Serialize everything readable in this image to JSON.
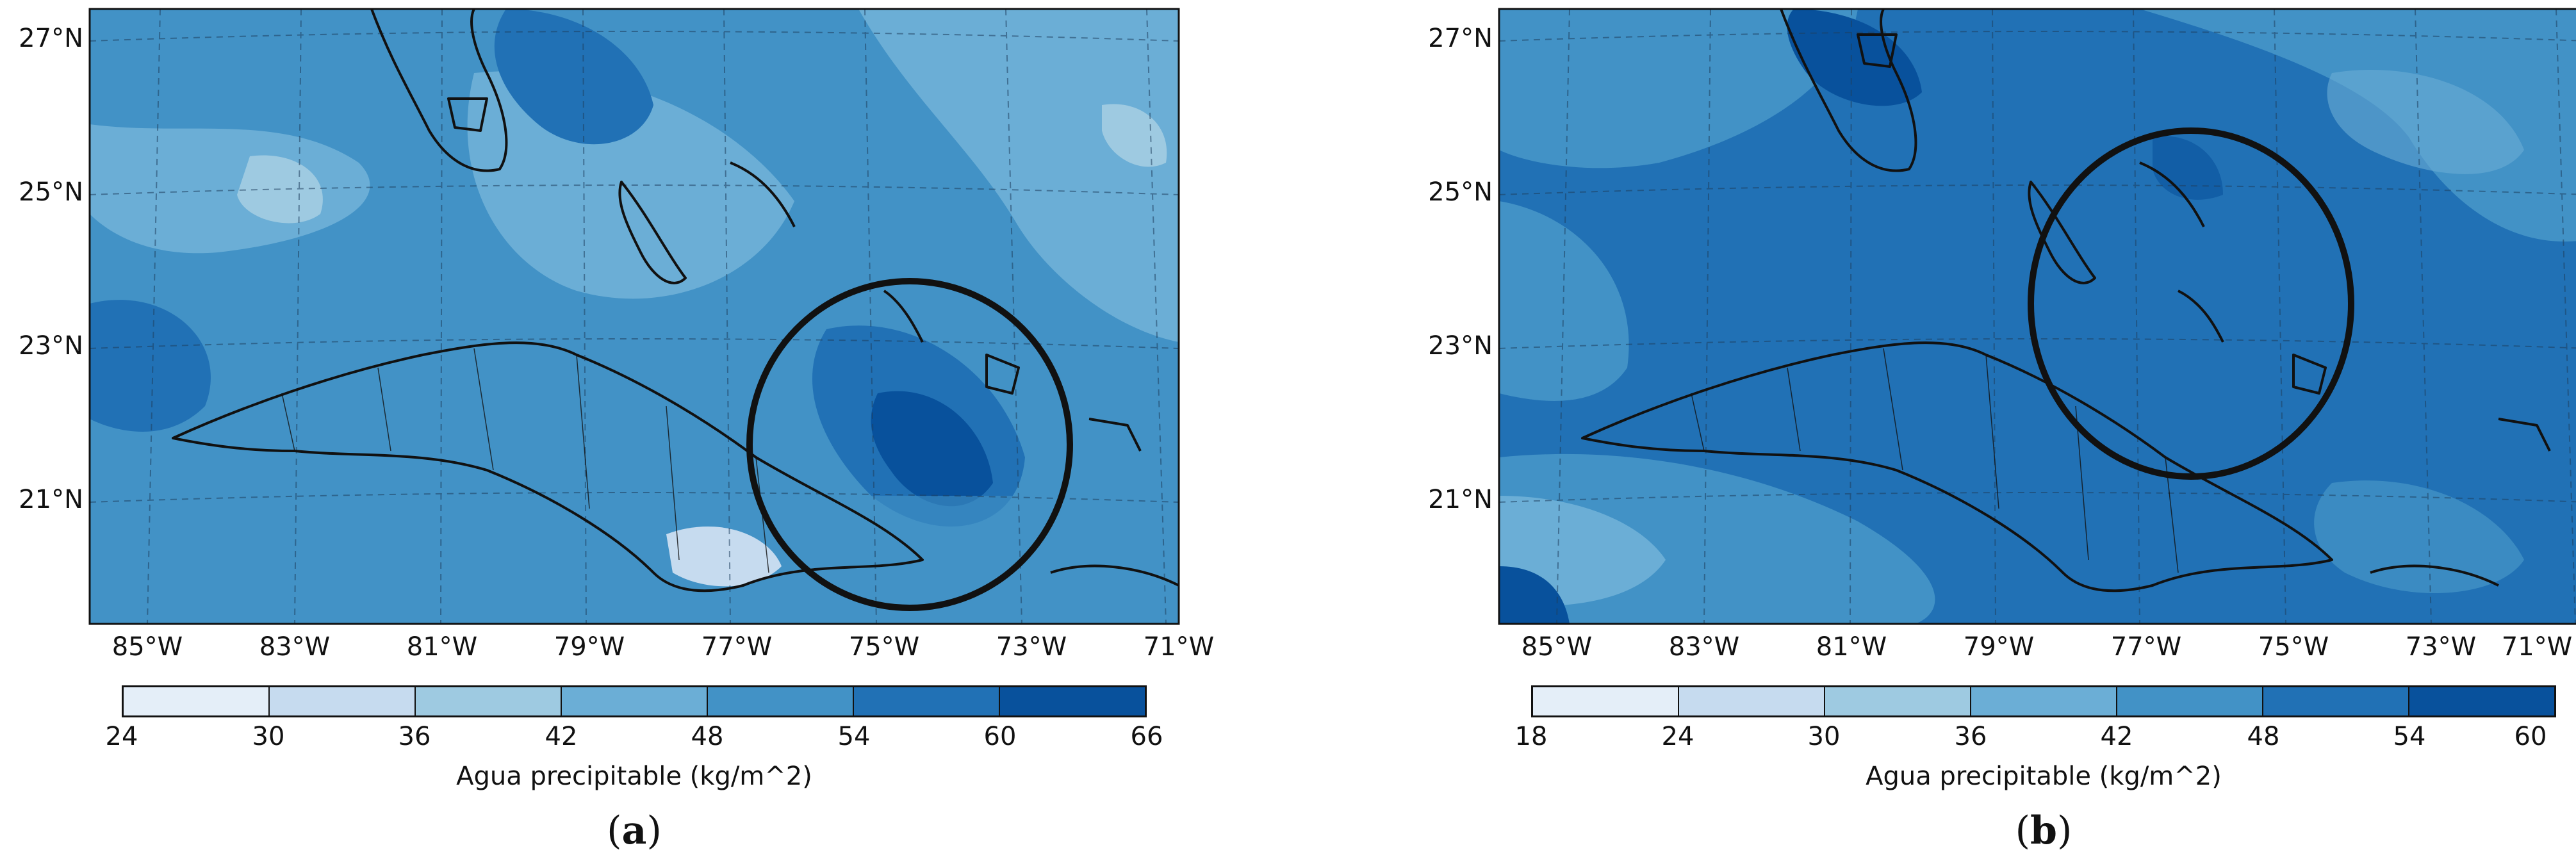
{
  "panels": [
    {
      "id": "a",
      "caption_letter": "a",
      "lat_labels": [
        "27°N",
        "25°N",
        "23°N",
        "21°N"
      ],
      "lon_labels": [
        "85°W",
        "83°W",
        "81°W",
        "79°W",
        "77°W",
        "75°W",
        "73°W",
        "71°W"
      ],
      "colorbar": {
        "ticks": [
          "24",
          "30",
          "36",
          "42",
          "48",
          "54",
          "60",
          "66"
        ],
        "colors": [
          "#e4eef8",
          "#c6dbef",
          "#9ecae1",
          "#6baed6",
          "#4292c6",
          "#2171b5",
          "#08519c"
        ],
        "label": "Agua precipitable (kg/m^2)"
      }
    },
    {
      "id": "b",
      "caption_letter": "b",
      "lat_labels": [
        "27°N",
        "25°N",
        "23°N",
        "21°N"
      ],
      "lon_labels": [
        "85°W",
        "83°W",
        "81°W",
        "79°W",
        "77°W",
        "75°W",
        "73°W",
        "71°W"
      ],
      "colorbar": {
        "ticks": [
          "18",
          "24",
          "30",
          "36",
          "42",
          "48",
          "54",
          "60"
        ],
        "colors": [
          "#e4eef8",
          "#c6dbef",
          "#9ecae1",
          "#6baed6",
          "#4292c6",
          "#2171b5",
          "#08519c"
        ],
        "label": "Agua precipitable (kg/m^2)"
      }
    }
  ]
}
